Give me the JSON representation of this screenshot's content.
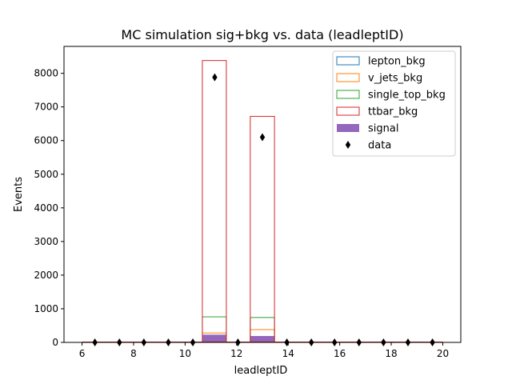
{
  "chart_data": {
    "type": "bar",
    "title": "MC simulation sig+bkg vs. data (leadleptID)",
    "xlabel": "leadleptID",
    "ylabel": "Events",
    "xlim": [
      5.3,
      20.7
    ],
    "ylim": [
      0,
      8800
    ],
    "xticks": [
      6,
      8,
      10,
      12,
      14,
      16,
      18,
      20
    ],
    "yticks": [
      0,
      1000,
      2000,
      3000,
      4000,
      5000,
      6000,
      7000,
      8000
    ],
    "histtype": "stacked step outlines, signal filled",
    "bins": [
      {
        "x0": 10.67,
        "x1": 11.6,
        "lepton_bkg": 0,
        "v_jets_bkg": 280,
        "single_top_bkg": 760,
        "ttbar_bkg": 8380,
        "signal": 230
      },
      {
        "x0": 12.53,
        "x1": 13.47,
        "lepton_bkg": 0,
        "v_jets_bkg": 380,
        "single_top_bkg": 740,
        "ttbar_bkg": 6720,
        "signal": 190
      }
    ],
    "series": [
      {
        "name": "lepton_bkg",
        "color": "#1f77b4",
        "style": "outline"
      },
      {
        "name": "v_jets_bkg",
        "color": "#ff7f0e",
        "style": "outline"
      },
      {
        "name": "single_top_bkg",
        "color": "#2ca02c",
        "style": "outline"
      },
      {
        "name": "ttbar_bkg",
        "color": "#d62728",
        "style": "outline"
      },
      {
        "name": "signal",
        "color": "#9467bd",
        "style": "filled"
      },
      {
        "name": "data",
        "color": "#000000",
        "style": "diamond-marker"
      }
    ],
    "data_points": {
      "x": [
        6.5,
        7.45,
        8.4,
        9.35,
        10.3,
        11.15,
        12.05,
        13.0,
        13.95,
        14.9,
        15.8,
        16.75,
        17.7,
        18.65,
        19.6
      ],
      "y": [
        0,
        0,
        0,
        0,
        0,
        7880,
        0,
        6100,
        0,
        0,
        0,
        0,
        0,
        0,
        0
      ]
    },
    "legend_position": "top-right",
    "grid": false
  }
}
